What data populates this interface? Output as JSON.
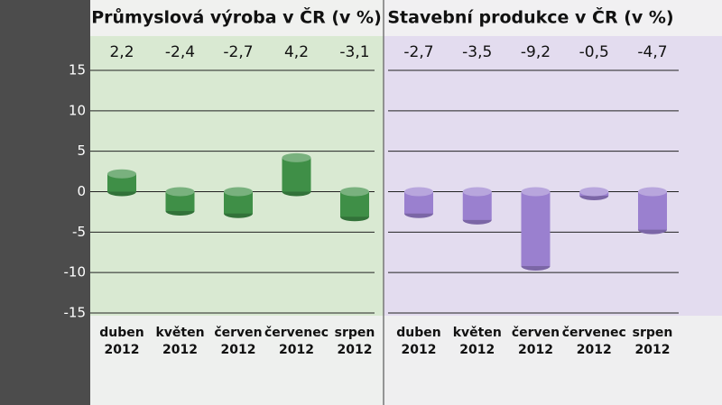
{
  "chart_data": [
    {
      "type": "bar",
      "title": "Průmyslová výroba v ČR (v %)",
      "categories": [
        "duben 2012",
        "květen 2012",
        "červen 2012",
        "červenec 2012",
        "srpen 2012"
      ],
      "values": [
        2.2,
        -2.4,
        -2.7,
        4.2,
        -3.1
      ],
      "value_labels": [
        "2,2",
        "-2,4",
        "-2,7",
        "4,2",
        "-3,1"
      ],
      "color": "#3f8f47",
      "ylim": [
        -15,
        15
      ],
      "yticks": [
        -15,
        -10,
        -5,
        0,
        5,
        10,
        15
      ],
      "grid": true
    },
    {
      "type": "bar",
      "title": "Stavební produkce v ČR (v %)",
      "categories": [
        "duben 2012",
        "květen 2012",
        "červen 2012",
        "červenec 2012",
        "srpen 2012"
      ],
      "values": [
        -2.7,
        -3.5,
        -9.2,
        -0.5,
        -4.7
      ],
      "value_labels": [
        "-2,7",
        "-3,5",
        "-9,2",
        "-0,5",
        "-4,7"
      ],
      "color": "#9a80cf",
      "ylim": [
        -15,
        15
      ],
      "yticks": [
        -15,
        -10,
        -5,
        0,
        5,
        10,
        15
      ],
      "grid": true
    }
  ]
}
